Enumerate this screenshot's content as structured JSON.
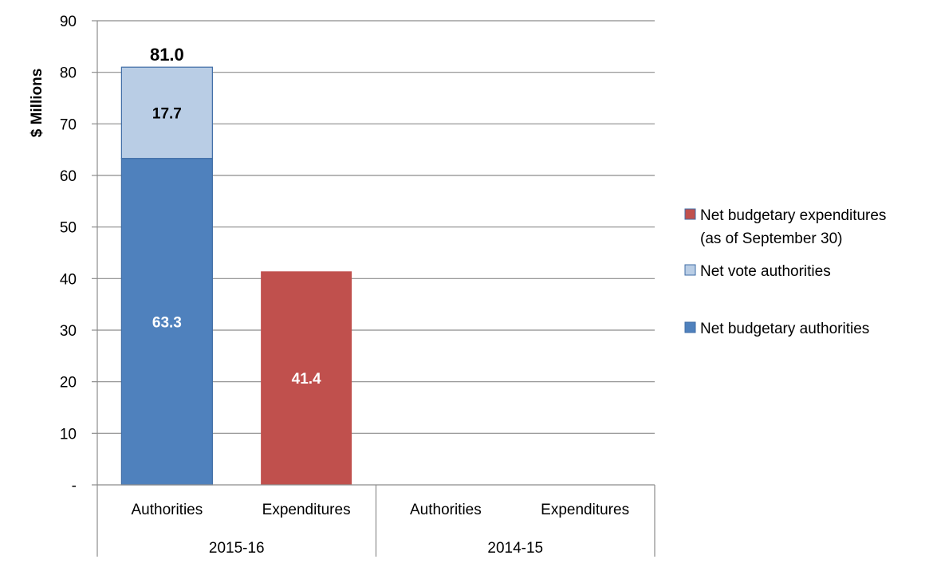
{
  "chart_data": {
    "type": "bar",
    "stacked": true,
    "ylabel": "$ Millions",
    "ylim": [
      0,
      90
    ],
    "yticks": [
      0,
      10,
      20,
      30,
      40,
      50,
      60,
      70,
      80,
      90
    ],
    "ytick_labels": [
      "-",
      "10",
      "20",
      "30",
      "40",
      "50",
      "60",
      "70",
      "80",
      "90"
    ],
    "grid": true,
    "groups": [
      {
        "label": "2015-16",
        "categories": [
          "Authorities",
          "Expenditures"
        ]
      },
      {
        "label": "2014-15",
        "categories": [
          "Authorities",
          "Expenditures"
        ]
      }
    ],
    "series": [
      {
        "name": "Net budgetary authorities",
        "color": "#4f81bd",
        "label_color": "#ffffff",
        "values": [
          63.3,
          null,
          null,
          null
        ]
      },
      {
        "name": "Net vote authorities",
        "color": "#b9cde5",
        "label_color": "#000000",
        "values": [
          17.7,
          null,
          null,
          null
        ]
      },
      {
        "name": "Net budgetary expenditures (as of September 30)",
        "legend_lines": [
          "Net budgetary expenditures",
          "(as of September 30)"
        ],
        "color": "#c0504d",
        "label_color": "#ffffff",
        "values": [
          null,
          41.4,
          null,
          null
        ]
      }
    ],
    "totals": [
      81.0,
      null,
      null,
      null
    ],
    "total_labels": [
      "81.0",
      null,
      null,
      null
    ],
    "legend_position": "right",
    "legend_order": [
      2,
      1,
      0
    ]
  }
}
